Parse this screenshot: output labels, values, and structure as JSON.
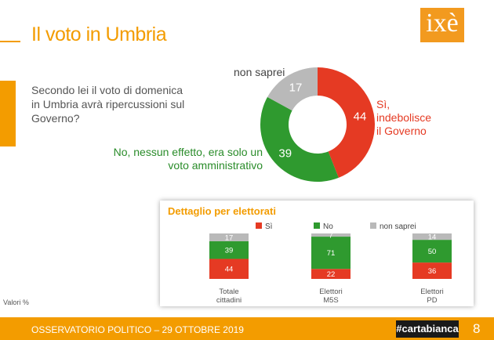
{
  "title": "Il voto in Umbria",
  "logo_text": "ixè",
  "question": "Secondo lei il voto di domenica in Umbria avrà ripercussioni sul Governo?",
  "chart_data": [
    {
      "type": "pie",
      "title": "Secondo lei il voto di domenica in Umbria avrà ripercussioni sul Governo?",
      "labels": [
        "Sì, indebolisce il Governo",
        "No, nessun effetto, era solo un voto amministrativo",
        "non saprei"
      ],
      "values": [
        44,
        39,
        17
      ],
      "colors": [
        "#e53a23",
        "#2f9a2f",
        "#b9b9b9"
      ]
    },
    {
      "type": "bar",
      "title": "Dettaglio per elettorati",
      "stacked": true,
      "categories": [
        [
          "Totale",
          "cittadini"
        ],
        [
          "Elettori",
          "M5S"
        ],
        [
          "Elettori",
          "PD"
        ]
      ],
      "series": [
        {
          "name": "Sì",
          "values": [
            44,
            22,
            36
          ],
          "color": "#e53a23"
        },
        {
          "name": "No",
          "values": [
            39,
            71,
            50
          ],
          "color": "#2f9a2f"
        },
        {
          "name": "non saprei",
          "values": [
            17,
            7,
            14
          ],
          "color": "#b9b9b9"
        }
      ]
    }
  ],
  "labels": {
    "non_saprei": "non saprei",
    "si_line1": "Sì,",
    "si_line2": "indebolisce",
    "si_line3": "il Governo",
    "no_line1": "No, nessun effetto, era solo un",
    "no_line2": "voto amministrativo"
  },
  "detail_title": "Dettaglio per elettorati",
  "valori": "Valori %",
  "footer": {
    "text": "OSSERVATORIO POLITICO – 29 OTTOBRE 2019",
    "brand": "#cartabianca",
    "page": "8"
  }
}
